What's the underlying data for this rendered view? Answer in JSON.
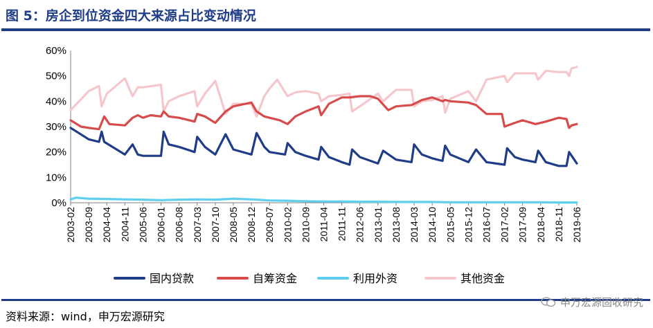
{
  "header": {
    "title": "图 5：房企到位资金四大来源占比变动情况"
  },
  "footer": {
    "source": "资料来源：wind，申万宏源研究",
    "watermark": "申万宏源固收研究"
  },
  "chart_data": {
    "type": "line",
    "title": "图 5：房企到位资金四大来源占比变动情况",
    "ylim": [
      0,
      60
    ],
    "y_unit": "%",
    "y_ticks": [
      "0%",
      "10%",
      "20%",
      "30%",
      "40%",
      "50%",
      "60%"
    ],
    "x_ticks": [
      "2003-02",
      "2003-09",
      "2004-04",
      "2004-11",
      "2005-06",
      "2006-01",
      "2006-08",
      "2007-03",
      "2007-10",
      "2008-05",
      "2008-12",
      "2009-07",
      "2010-02",
      "2010-09",
      "2011-04",
      "2011-11",
      "2012-06",
      "2013-01",
      "2013-08",
      "2014-03",
      "2014-10",
      "2015-05",
      "2015-12",
      "2016-07",
      "2017-02",
      "2017-09",
      "2018-04",
      "2018-11",
      "2019-06"
    ],
    "legend_position": "bottom",
    "series": [
      {
        "name": "国内贷款",
        "color": "#1f3c88",
        "points": [
          [
            "2003-02",
            29.5
          ],
          [
            "2003-09",
            25
          ],
          [
            "2004-01",
            24
          ],
          [
            "2004-02",
            28
          ],
          [
            "2004-03",
            24
          ],
          [
            "2004-11",
            19
          ],
          [
            "2005-02",
            23
          ],
          [
            "2005-04",
            19
          ],
          [
            "2005-06",
            18.5
          ],
          [
            "2006-01",
            18.5
          ],
          [
            "2006-02",
            28
          ],
          [
            "2006-04",
            23
          ],
          [
            "2006-08",
            22
          ],
          [
            "2007-02",
            20
          ],
          [
            "2007-03",
            26
          ],
          [
            "2007-06",
            22
          ],
          [
            "2007-10",
            19
          ],
          [
            "2008-02",
            27
          ],
          [
            "2008-05",
            21
          ],
          [
            "2008-12",
            19
          ],
          [
            "2009-02",
            27.5
          ],
          [
            "2009-05",
            22
          ],
          [
            "2009-07",
            20
          ],
          [
            "2010-01",
            19
          ],
          [
            "2010-02",
            23.5
          ],
          [
            "2010-05",
            20
          ],
          [
            "2010-09",
            18.5
          ],
          [
            "2011-02",
            17
          ],
          [
            "2011-03",
            22
          ],
          [
            "2011-06",
            18
          ],
          [
            "2011-11",
            16
          ],
          [
            "2012-02",
            15
          ],
          [
            "2012-03",
            21
          ],
          [
            "2012-06",
            18
          ],
          [
            "2013-01",
            15.5
          ],
          [
            "2013-03",
            20.5
          ],
          [
            "2013-08",
            17
          ],
          [
            "2014-02",
            16
          ],
          [
            "2014-03",
            23
          ],
          [
            "2014-06",
            19
          ],
          [
            "2014-10",
            17.5
          ],
          [
            "2015-02",
            16.5
          ],
          [
            "2015-03",
            22.5
          ],
          [
            "2015-05",
            19
          ],
          [
            "2015-12",
            16
          ],
          [
            "2016-03",
            21
          ],
          [
            "2016-07",
            16
          ],
          [
            "2017-02",
            15
          ],
          [
            "2017-03",
            21.5
          ],
          [
            "2017-06",
            18
          ],
          [
            "2017-09",
            17
          ],
          [
            "2018-02",
            16
          ],
          [
            "2018-03",
            20.5
          ],
          [
            "2018-06",
            16
          ],
          [
            "2018-11",
            14.5
          ],
          [
            "2019-02",
            14.5
          ],
          [
            "2019-03",
            20
          ],
          [
            "2019-06",
            15.5
          ]
        ]
      },
      {
        "name": "自筹资金",
        "color": "#d84b4b",
        "points": [
          [
            "2003-02",
            32.5
          ],
          [
            "2003-06",
            30
          ],
          [
            "2003-09",
            29.5
          ],
          [
            "2004-01",
            29
          ],
          [
            "2004-03",
            34
          ],
          [
            "2004-05",
            31
          ],
          [
            "2004-11",
            30.5
          ],
          [
            "2005-02",
            33.5
          ],
          [
            "2005-04",
            34.5
          ],
          [
            "2005-06",
            33.5
          ],
          [
            "2005-09",
            34.5
          ],
          [
            "2006-01",
            34
          ],
          [
            "2006-02",
            36
          ],
          [
            "2006-04",
            34
          ],
          [
            "2006-08",
            33.5
          ],
          [
            "2007-02",
            32
          ],
          [
            "2007-03",
            35
          ],
          [
            "2007-06",
            34
          ],
          [
            "2007-10",
            31.5
          ],
          [
            "2008-02",
            36
          ],
          [
            "2008-05",
            38
          ],
          [
            "2008-12",
            39.5
          ],
          [
            "2009-02",
            36
          ],
          [
            "2009-05",
            34
          ],
          [
            "2009-07",
            33.5
          ],
          [
            "2009-11",
            32.5
          ],
          [
            "2010-02",
            31
          ],
          [
            "2010-05",
            34
          ],
          [
            "2010-09",
            36
          ],
          [
            "2011-02",
            38
          ],
          [
            "2011-03",
            34.5
          ],
          [
            "2011-06",
            39
          ],
          [
            "2011-11",
            41.5
          ],
          [
            "2012-02",
            41.5
          ],
          [
            "2012-06",
            42
          ],
          [
            "2012-10",
            42
          ],
          [
            "2013-01",
            41
          ],
          [
            "2013-05",
            36.5
          ],
          [
            "2013-08",
            38
          ],
          [
            "2014-02",
            38.5
          ],
          [
            "2014-06",
            40.5
          ],
          [
            "2014-10",
            41.5
          ],
          [
            "2015-02",
            40
          ],
          [
            "2015-03",
            40.5
          ],
          [
            "2015-05",
            40
          ],
          [
            "2015-12",
            39.5
          ],
          [
            "2016-03",
            38.5
          ],
          [
            "2016-07",
            35
          ],
          [
            "2017-01",
            35
          ],
          [
            "2017-02",
            30
          ],
          [
            "2017-06",
            31.5
          ],
          [
            "2017-09",
            32.5
          ],
          [
            "2018-02",
            31
          ],
          [
            "2018-06",
            32
          ],
          [
            "2018-11",
            33.5
          ],
          [
            "2019-02",
            33
          ],
          [
            "2019-03",
            29.5
          ],
          [
            "2019-04",
            30.5
          ],
          [
            "2019-06",
            31
          ]
        ]
      },
      {
        "name": "利用外资",
        "color": "#5ecfef",
        "points": [
          [
            "2003-02",
            1.3
          ],
          [
            "2003-04",
            2
          ],
          [
            "2003-09",
            1.6
          ],
          [
            "2004-04",
            1.5
          ],
          [
            "2004-11",
            1.3
          ],
          [
            "2005-06",
            1.2
          ],
          [
            "2006-01",
            1
          ],
          [
            "2006-08",
            1.2
          ],
          [
            "2007-03",
            1.3
          ],
          [
            "2007-10",
            1.2
          ],
          [
            "2008-05",
            1.6
          ],
          [
            "2008-12",
            1.3
          ],
          [
            "2009-07",
            0.9
          ],
          [
            "2010-02",
            0.8
          ],
          [
            "2010-09",
            0.6
          ],
          [
            "2011-04",
            0.5
          ],
          [
            "2011-11",
            0.5
          ],
          [
            "2012-06",
            0.4
          ],
          [
            "2013-01",
            0.4
          ],
          [
            "2013-08",
            0.3
          ],
          [
            "2014-03",
            0.3
          ],
          [
            "2014-10",
            0.3
          ],
          [
            "2015-05",
            0.2
          ],
          [
            "2015-12",
            0.2
          ],
          [
            "2016-07",
            0.2
          ],
          [
            "2017-02",
            0.2
          ],
          [
            "2017-09",
            0.2
          ],
          [
            "2018-04",
            0.2
          ],
          [
            "2018-11",
            0.1
          ],
          [
            "2019-06",
            0.1
          ]
        ]
      },
      {
        "name": "其他资金",
        "color": "#f5c6cb",
        "points": [
          [
            "2003-02",
            36.5
          ],
          [
            "2003-09",
            44
          ],
          [
            "2004-01",
            46
          ],
          [
            "2004-02",
            38
          ],
          [
            "2004-04",
            43
          ],
          [
            "2004-11",
            49
          ],
          [
            "2005-02",
            42
          ],
          [
            "2005-04",
            45.5
          ],
          [
            "2005-06",
            45.5
          ],
          [
            "2006-01",
            46.5
          ],
          [
            "2006-02",
            36
          ],
          [
            "2006-04",
            40
          ],
          [
            "2006-08",
            42
          ],
          [
            "2007-02",
            44
          ],
          [
            "2007-03",
            38
          ],
          [
            "2007-06",
            43
          ],
          [
            "2007-10",
            48
          ],
          [
            "2008-02",
            35
          ],
          [
            "2008-05",
            39
          ],
          [
            "2008-12",
            39
          ],
          [
            "2009-02",
            34
          ],
          [
            "2009-05",
            42
          ],
          [
            "2009-07",
            45
          ],
          [
            "2009-10",
            48.5
          ],
          [
            "2010-02",
            42
          ],
          [
            "2010-05",
            43.5
          ],
          [
            "2010-09",
            44
          ],
          [
            "2011-02",
            43
          ],
          [
            "2011-03",
            40
          ],
          [
            "2011-06",
            42
          ],
          [
            "2011-11",
            42.5
          ],
          [
            "2012-02",
            43
          ],
          [
            "2012-03",
            36
          ],
          [
            "2012-06",
            38
          ],
          [
            "2013-01",
            43
          ],
          [
            "2013-03",
            40
          ],
          [
            "2013-08",
            44.5
          ],
          [
            "2014-02",
            44.5
          ],
          [
            "2014-03",
            38
          ],
          [
            "2014-06",
            40
          ],
          [
            "2014-10",
            40.5
          ],
          [
            "2015-02",
            42
          ],
          [
            "2015-03",
            35.5
          ],
          [
            "2015-05",
            41
          ],
          [
            "2015-12",
            44
          ],
          [
            "2016-03",
            40
          ],
          [
            "2016-07",
            48.5
          ],
          [
            "2017-02",
            50
          ],
          [
            "2017-03",
            47.5
          ],
          [
            "2017-06",
            51
          ],
          [
            "2017-09",
            51
          ],
          [
            "2018-02",
            51
          ],
          [
            "2018-03",
            48.5
          ],
          [
            "2018-06",
            52
          ],
          [
            "2018-11",
            51.5
          ],
          [
            "2019-02",
            51.5
          ],
          [
            "2019-03",
            50
          ],
          [
            "2019-04",
            53
          ],
          [
            "2019-06",
            53.5
          ]
        ]
      }
    ]
  }
}
